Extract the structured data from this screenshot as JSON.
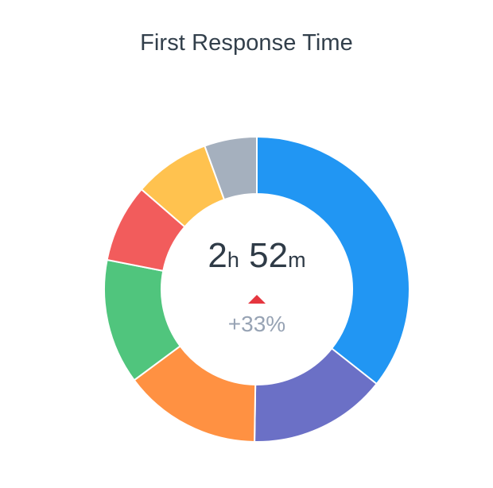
{
  "chart_data": {
    "type": "pie",
    "variant": "donut",
    "title": "First Response Time",
    "unlabeled_segments": true,
    "values": [
      36.6,
      15.0,
      15.0,
      13.6,
      8.5,
      8.3,
      5.7
    ],
    "colors": [
      "#2196f3",
      "#6b70c6",
      "#ff9142",
      "#50c57d",
      "#f25c5c",
      "#ffc24f",
      "#a5b0be"
    ],
    "center": {
      "hours": "2",
      "hours_unit": "h",
      "minutes": "52",
      "minutes_unit": "m",
      "trend": "up",
      "trend_color": "#e5363f",
      "change": "+33%"
    }
  }
}
